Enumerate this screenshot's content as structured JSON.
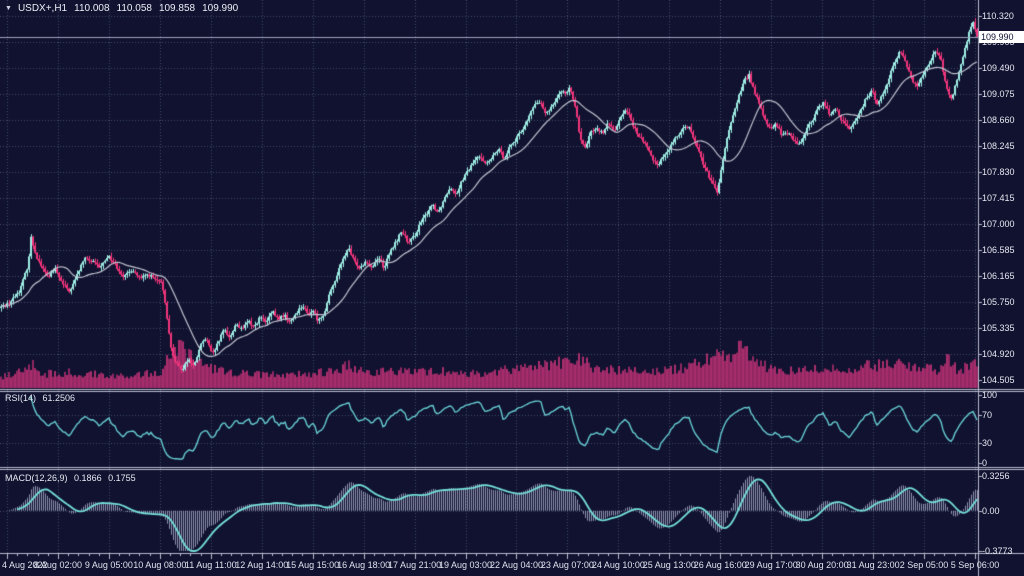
{
  "quote_bar": {
    "symbol_timeframe": "USDX+,H1",
    "open": "110.008",
    "high": "110.058",
    "low": "109.858",
    "close": "109.990"
  },
  "price_axis": {
    "ticks": [
      "110.320",
      "109.905",
      "109.490",
      "109.075",
      "108.660",
      "108.245",
      "107.830",
      "107.415",
      "107.000",
      "106.585",
      "106.165",
      "105.750",
      "105.335",
      "104.920",
      "104.505"
    ],
    "current_price_label": "109.990"
  },
  "time_axis": {
    "labels": [
      "4 Aug 2022",
      "8 Aug 02:00",
      "9 Aug 05:00",
      "10 Aug 08:00",
      "11 Aug 11:00",
      "12 Aug 14:00",
      "15 Aug 15:00",
      "16 Aug 18:00",
      "17 Aug 21:00",
      "19 Aug 03:00",
      "22 Aug 04:00",
      "23 Aug 07:00",
      "24 Aug 10:00",
      "25 Aug 13:00",
      "26 Aug 16:00",
      "29 Aug 17:00",
      "30 Aug 20:00",
      "31 Aug 23:00",
      "2 Sep 05:00",
      "5 Sep 06:00"
    ]
  },
  "rsi_panel": {
    "name": "RSI(14)",
    "value": "61.2506",
    "ticks": [
      "100",
      "70",
      "30",
      "0"
    ],
    "tick_values": [
      100,
      70,
      30,
      0
    ],
    "levels": [
      70,
      30
    ]
  },
  "macd_panel": {
    "name": "MACD(12,26,9)",
    "value_main": "0.1866",
    "value_signal": "0.1755",
    "ticks": [
      "0.3256",
      "0.00",
      "-0.3773"
    ],
    "tick_values": [
      0.3256,
      0.0,
      -0.3773
    ]
  },
  "colors": {
    "background": "#10122f",
    "bull": "#9feee6",
    "bear": "#f0357b",
    "volume": "#a82d6c",
    "ma_line": "#c0c2d0",
    "rsi_line": "#66ccd2",
    "macd_hist": "#9aa0bc",
    "macd_signal": "#74dfd8",
    "grid": "#9098c4",
    "axis_line": "#b9bcce",
    "text": "#e7e9f3",
    "badge_bg": "#ffffff",
    "badge_text": "#0e1030",
    "price_line": "#9fa3bd"
  },
  "chart_data": {
    "type": "candlestick",
    "symbol": "USDX+",
    "timeframe": "H1",
    "bar_count": 489,
    "price_axis_range": {
      "min": 104.505,
      "max": 110.32,
      "tick_step": 0.415
    },
    "last_close": 109.99,
    "close_anchors": [
      [
        2,
        105.68
      ],
      [
        10,
        105.75
      ],
      [
        20,
        105.95
      ],
      [
        28,
        106.35
      ],
      [
        31,
        106.78
      ],
      [
        36,
        106.5
      ],
      [
        42,
        106.3
      ],
      [
        48,
        106.15
      ],
      [
        55,
        106.28
      ],
      [
        62,
        106.05
      ],
      [
        70,
        105.92
      ],
      [
        76,
        106.15
      ],
      [
        84,
        106.45
      ],
      [
        92,
        106.4
      ],
      [
        100,
        106.3
      ],
      [
        108,
        106.5
      ],
      [
        116,
        106.33
      ],
      [
        124,
        106.15
      ],
      [
        132,
        106.28
      ],
      [
        140,
        106.12
      ],
      [
        148,
        106.2
      ],
      [
        156,
        106.1
      ],
      [
        162,
        106.05
      ],
      [
        166,
        105.65
      ],
      [
        170,
        105.1
      ],
      [
        175,
        104.78
      ],
      [
        182,
        104.68
      ],
      [
        188,
        104.85
      ],
      [
        194,
        104.72
      ],
      [
        200,
        105.05
      ],
      [
        206,
        105.18
      ],
      [
        212,
        104.9
      ],
      [
        218,
        105.1
      ],
      [
        224,
        105.32
      ],
      [
        230,
        105.18
      ],
      [
        236,
        105.42
      ],
      [
        242,
        105.3
      ],
      [
        248,
        105.45
      ],
      [
        254,
        105.35
      ],
      [
        260,
        105.52
      ],
      [
        266,
        105.42
      ],
      [
        272,
        105.6
      ],
      [
        278,
        105.48
      ],
      [
        284,
        105.55
      ],
      [
        290,
        105.42
      ],
      [
        296,
        105.58
      ],
      [
        302,
        105.7
      ],
      [
        308,
        105.55
      ],
      [
        313,
        105.62
      ],
      [
        318,
        105.45
      ],
      [
        324,
        105.58
      ],
      [
        330,
        105.9
      ],
      [
        336,
        106.15
      ],
      [
        342,
        106.4
      ],
      [
        348,
        106.62
      ],
      [
        354,
        106.4
      ],
      [
        360,
        106.3
      ],
      [
        366,
        106.42
      ],
      [
        372,
        106.3
      ],
      [
        378,
        106.48
      ],
      [
        384,
        106.3
      ],
      [
        390,
        106.55
      ],
      [
        396,
        106.72
      ],
      [
        402,
        106.9
      ],
      [
        408,
        106.68
      ],
      [
        414,
        106.8
      ],
      [
        420,
        107.0
      ],
      [
        426,
        107.15
      ],
      [
        432,
        107.32
      ],
      [
        438,
        107.18
      ],
      [
        444,
        107.4
      ],
      [
        450,
        107.6
      ],
      [
        456,
        107.48
      ],
      [
        462,
        107.7
      ],
      [
        468,
        107.85
      ],
      [
        474,
        108.0
      ],
      [
        480,
        108.1
      ],
      [
        486,
        107.95
      ],
      [
        492,
        108.05
      ],
      [
        498,
        108.2
      ],
      [
        504,
        108.05
      ],
      [
        510,
        108.25
      ],
      [
        516,
        108.35
      ],
      [
        522,
        108.5
      ],
      [
        528,
        108.68
      ],
      [
        534,
        108.9
      ],
      [
        540,
        108.95
      ],
      [
        545,
        108.75
      ],
      [
        550,
        108.85
      ],
      [
        556,
        109.0
      ],
      [
        562,
        109.15
      ],
      [
        566,
        109.05
      ],
      [
        570,
        109.18
      ],
      [
        575,
        108.9
      ],
      [
        580,
        108.35
      ],
      [
        585,
        108.2
      ],
      [
        590,
        108.45
      ],
      [
        596,
        108.55
      ],
      [
        602,
        108.45
      ],
      [
        608,
        108.6
      ],
      [
        614,
        108.5
      ],
      [
        620,
        108.68
      ],
      [
        626,
        108.85
      ],
      [
        632,
        108.6
      ],
      [
        638,
        108.42
      ],
      [
        645,
        108.28
      ],
      [
        652,
        108.05
      ],
      [
        658,
        107.95
      ],
      [
        664,
        108.1
      ],
      [
        670,
        108.22
      ],
      [
        676,
        108.38
      ],
      [
        682,
        108.52
      ],
      [
        688,
        108.58
      ],
      [
        694,
        108.35
      ],
      [
        700,
        108.1
      ],
      [
        706,
        107.85
      ],
      [
        712,
        107.65
      ],
      [
        717,
        107.5
      ],
      [
        722,
        107.95
      ],
      [
        727,
        108.35
      ],
      [
        733,
        108.75
      ],
      [
        739,
        109.05
      ],
      [
        744,
        109.28
      ],
      [
        749,
        109.38
      ],
      [
        754,
        109.12
      ],
      [
        759,
        108.92
      ],
      [
        764,
        108.7
      ],
      [
        770,
        108.5
      ],
      [
        776,
        108.6
      ],
      [
        782,
        108.4
      ],
      [
        788,
        108.48
      ],
      [
        794,
        108.32
      ],
      [
        800,
        108.28
      ],
      [
        806,
        108.5
      ],
      [
        812,
        108.65
      ],
      [
        818,
        108.85
      ],
      [
        824,
        108.95
      ],
      [
        830,
        108.72
      ],
      [
        836,
        108.85
      ],
      [
        842,
        108.65
      ],
      [
        848,
        108.52
      ],
      [
        854,
        108.6
      ],
      [
        860,
        108.8
      ],
      [
        866,
        109.0
      ],
      [
        872,
        109.12
      ],
      [
        877,
        108.92
      ],
      [
        882,
        109.05
      ],
      [
        888,
        109.3
      ],
      [
        894,
        109.55
      ],
      [
        900,
        109.78
      ],
      [
        906,
        109.55
      ],
      [
        912,
        109.3
      ],
      [
        918,
        109.2
      ],
      [
        924,
        109.45
      ],
      [
        930,
        109.6
      ],
      [
        936,
        109.78
      ],
      [
        941,
        109.6
      ],
      [
        946,
        109.2
      ],
      [
        951,
        108.98
      ],
      [
        956,
        109.25
      ],
      [
        961,
        109.55
      ],
      [
        966,
        109.85
      ],
      [
        970,
        110.12
      ],
      [
        973,
        110.22
      ],
      [
        976,
        110.02
      ],
      [
        977,
        109.99
      ]
    ],
    "volume_anchors": [
      [
        2,
        0.22
      ],
      [
        31,
        0.5
      ],
      [
        45,
        0.3
      ],
      [
        70,
        0.33
      ],
      [
        100,
        0.3
      ],
      [
        130,
        0.27
      ],
      [
        160,
        0.33
      ],
      [
        170,
        0.75
      ],
      [
        182,
        0.95
      ],
      [
        195,
        0.55
      ],
      [
        210,
        0.42
      ],
      [
        230,
        0.33
      ],
      [
        255,
        0.3
      ],
      [
        280,
        0.28
      ],
      [
        310,
        0.3
      ],
      [
        335,
        0.38
      ],
      [
        348,
        0.48
      ],
      [
        365,
        0.33
      ],
      [
        390,
        0.36
      ],
      [
        415,
        0.33
      ],
      [
        440,
        0.36
      ],
      [
        465,
        0.3
      ],
      [
        490,
        0.33
      ],
      [
        517,
        0.42
      ],
      [
        540,
        0.5
      ],
      [
        565,
        0.55
      ],
      [
        580,
        0.6
      ],
      [
        600,
        0.38
      ],
      [
        620,
        0.4
      ],
      [
        645,
        0.36
      ],
      [
        665,
        0.38
      ],
      [
        690,
        0.45
      ],
      [
        705,
        0.6
      ],
      [
        717,
        0.85
      ],
      [
        730,
        0.6
      ],
      [
        740,
        1.0
      ],
      [
        755,
        0.55
      ],
      [
        770,
        0.42
      ],
      [
        795,
        0.36
      ],
      [
        820,
        0.42
      ],
      [
        845,
        0.38
      ],
      [
        870,
        0.48
      ],
      [
        895,
        0.52
      ],
      [
        920,
        0.45
      ],
      [
        940,
        0.38
      ],
      [
        948,
        0.62
      ],
      [
        958,
        0.35
      ],
      [
        968,
        0.48
      ],
      [
        975,
        0.55
      ]
    ],
    "overlays": [
      {
        "type": "sma",
        "period": 20
      },
      {
        "type": "rsi",
        "period": 14,
        "levels": [
          70,
          30
        ],
        "last": 61.2506
      },
      {
        "type": "macd",
        "fast": 12,
        "slow": 26,
        "signal": 9,
        "last_main": 0.1866,
        "last_signal": 0.1755
      }
    ],
    "macd_scale": {
      "max": 0.3256,
      "min": -0.3773
    }
  }
}
